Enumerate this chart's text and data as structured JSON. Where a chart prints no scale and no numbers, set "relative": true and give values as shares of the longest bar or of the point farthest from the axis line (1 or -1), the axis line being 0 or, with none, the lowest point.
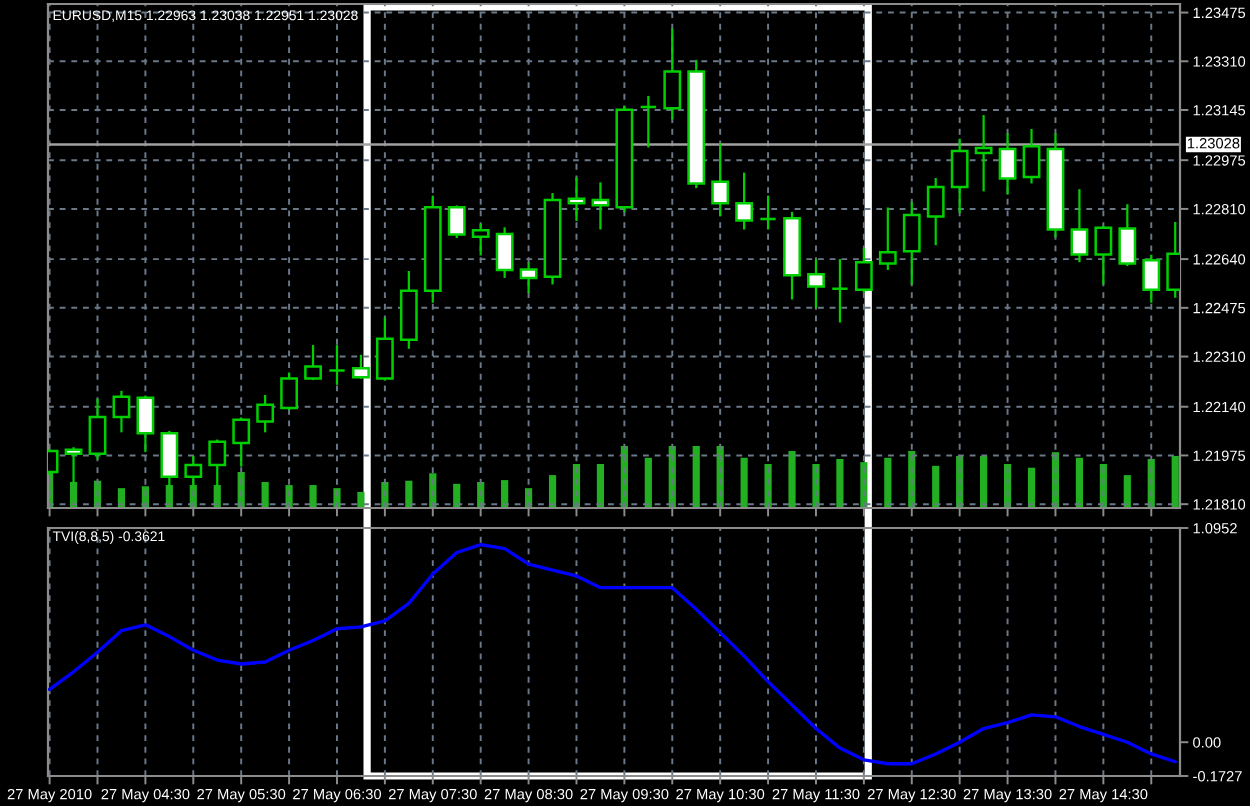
{
  "chart_data": [
    {
      "type": "candlestick",
      "title": "EURUSD,M15 1.22963 1.23038 1.22951 1.23028",
      "x": [
        "2010-05-27T03:30",
        "2010-05-27T03:45",
        "2010-05-27T04:00",
        "2010-05-27T04:15",
        "2010-05-27T04:30",
        "2010-05-27T04:45",
        "2010-05-27T05:00",
        "2010-05-27T05:15",
        "2010-05-27T05:30",
        "2010-05-27T05:45",
        "2010-05-27T06:00",
        "2010-05-27T06:15",
        "2010-05-27T06:30",
        "2010-05-27T06:45",
        "2010-05-27T07:00",
        "2010-05-27T07:15",
        "2010-05-27T07:30",
        "2010-05-27T07:45",
        "2010-05-27T08:00",
        "2010-05-27T08:15",
        "2010-05-27T08:30",
        "2010-05-27T08:45",
        "2010-05-27T09:00",
        "2010-05-27T09:15",
        "2010-05-27T09:30",
        "2010-05-27T09:45",
        "2010-05-27T10:00",
        "2010-05-27T10:15",
        "2010-05-27T10:30",
        "2010-05-27T10:45",
        "2010-05-27T11:00",
        "2010-05-27T11:15",
        "2010-05-27T11:30",
        "2010-05-27T11:45",
        "2010-05-27T12:00",
        "2010-05-27T12:15",
        "2010-05-27T12:30",
        "2010-05-27T12:45",
        "2010-05-27T13:00",
        "2010-05-27T13:15",
        "2010-05-27T13:30",
        "2010-05-27T13:45",
        "2010-05-27T14:00",
        "2010-05-27T14:15",
        "2010-05-27T14:30",
        "2010-05-27T14:45",
        "2010-05-27T15:00",
        "2010-05-27T15:15"
      ],
      "ohlc": [
        [
          1.21919,
          1.21992,
          1.21912,
          1.2199
        ],
        [
          1.21994,
          1.21999,
          1.21885,
          1.21981
        ],
        [
          1.21981,
          1.22163,
          1.21965,
          1.22105
        ],
        [
          1.22105,
          1.2219,
          1.22057,
          1.22174
        ],
        [
          1.2217,
          1.22174,
          1.2199,
          1.2205
        ],
        [
          1.2205,
          1.22054,
          1.21874,
          1.21903
        ],
        [
          1.21903,
          1.2197,
          1.21872,
          1.21943
        ],
        [
          1.21943,
          1.22025,
          1.21874,
          1.22021
        ],
        [
          1.22017,
          1.221,
          1.21941,
          1.22096
        ],
        [
          1.2209,
          1.22176,
          1.22057,
          1.22147
        ],
        [
          1.22136,
          1.22252,
          1.22132,
          1.22236
        ],
        [
          1.22236,
          1.22345,
          1.22234,
          1.22276
        ],
        [
          1.22263,
          1.22345,
          1.22218,
          1.22263
        ],
        [
          1.2227,
          1.22312,
          1.22238,
          1.2224
        ],
        [
          1.22236,
          1.22438,
          1.22232,
          1.2237
        ],
        [
          1.22367,
          1.22596,
          1.2234,
          1.22533
        ],
        [
          1.22533,
          1.22851,
          1.22496,
          1.22816
        ],
        [
          1.22816,
          1.22818,
          1.22715,
          1.22723
        ],
        [
          1.22716,
          1.22756,
          1.22656,
          1.22738
        ],
        [
          1.22725,
          1.22744,
          1.2258,
          1.22603
        ],
        [
          1.22605,
          1.22625,
          1.22529,
          1.22576
        ],
        [
          1.2258,
          1.2286,
          1.22558,
          1.2284
        ],
        [
          1.22844,
          1.22913,
          1.22773,
          1.22829
        ],
        [
          1.2284,
          1.22896,
          1.22744,
          1.22822
        ],
        [
          1.22816,
          1.23155,
          1.22802,
          1.23146
        ],
        [
          1.23155,
          1.23189,
          1.23022,
          1.23155
        ],
        [
          1.23151,
          1.23417,
          1.23117,
          1.23275
        ],
        [
          1.23275,
          1.23311,
          1.22884,
          1.22896
        ],
        [
          1.22902,
          1.23029,
          1.22789,
          1.22829
        ],
        [
          1.22829,
          1.22929,
          1.22744,
          1.22771
        ],
        [
          1.22776,
          1.22851,
          1.22744,
          1.22776
        ],
        [
          1.22778,
          1.22796,
          1.22507,
          1.22585
        ],
        [
          1.22589,
          1.22636,
          1.22478,
          1.22547
        ],
        [
          1.2254,
          1.22636,
          1.22429,
          1.2254
        ],
        [
          1.22536,
          1.22673,
          1.22531,
          1.22629
        ],
        [
          1.22625,
          1.22811,
          1.22607,
          1.22663
        ],
        [
          1.22667,
          1.22829,
          1.22558,
          1.22789
        ],
        [
          1.22784,
          1.22911,
          1.22691,
          1.22884
        ],
        [
          1.22884,
          1.23044,
          1.228,
          1.23006
        ],
        [
          1.22999,
          1.23124,
          1.22873,
          1.23016
        ],
        [
          1.23013,
          1.23062,
          1.22862,
          1.22913
        ],
        [
          1.22918,
          1.23077,
          1.229,
          1.23022
        ],
        [
          1.23013,
          1.23062,
          1.22718,
          1.2274
        ],
        [
          1.2274,
          1.22873,
          1.22633,
          1.22656
        ],
        [
          1.22656,
          1.22749,
          1.22558,
          1.22746
        ],
        [
          1.22744,
          1.22822,
          1.2262,
          1.22625
        ],
        [
          1.22636,
          1.22651,
          1.22496,
          1.22536
        ],
        [
          1.22536,
          1.22762,
          1.22513,
          1.22658
        ]
      ],
      "color": "#00d000",
      "colors": [
        "#000000",
        "#ffffff",
        "#000000",
        "#000000",
        "#ffffff",
        "#ffffff",
        "#000000",
        "#000000",
        "#000000",
        "#000000",
        "#000000",
        "#000000",
        "#00d000",
        "#ffffff",
        "#000000",
        "#000000",
        "#000000",
        "#ffffff",
        "#000000",
        "#ffffff",
        "#ffffff",
        "#000000",
        "#ffffff",
        "#ffffff",
        "#000000",
        "#00d000",
        "#000000",
        "#ffffff",
        "#ffffff",
        "#ffffff",
        "#00d000",
        "#ffffff",
        "#ffffff",
        "#00d000",
        "#000000",
        "#000000",
        "#000000",
        "#000000",
        "#000000",
        "#000000",
        "#ffffff",
        "#000000",
        "#ffffff",
        "#ffffff",
        "#000000",
        "#ffffff",
        "#ffffff",
        "#000000"
      ],
      "xlim": [
        "2010-05-27T03:29",
        "2010-05-27T15:18"
      ],
      "xticks": [
        {
          "value": "2010-05-27T03:30",
          "label": null
        },
        {
          "value": "2010-05-27T04:00",
          "label": null
        },
        {
          "value": "2010-05-27T04:30",
          "label": null
        },
        {
          "value": "2010-05-27T05:00",
          "label": null
        },
        {
          "value": "2010-05-27T05:30",
          "label": null
        },
        {
          "value": "2010-05-27T06:00",
          "label": null
        },
        {
          "value": "2010-05-27T06:30",
          "label": null
        },
        {
          "value": "2010-05-27T07:00",
          "label": null
        },
        {
          "value": "2010-05-27T07:30",
          "label": null
        },
        {
          "value": "2010-05-27T08:00",
          "label": null
        },
        {
          "value": "2010-05-27T08:30",
          "label": null
        },
        {
          "value": "2010-05-27T09:00",
          "label": null
        },
        {
          "value": "2010-05-27T09:30",
          "label": null
        },
        {
          "value": "2010-05-27T10:00",
          "label": null
        },
        {
          "value": "2010-05-27T10:30",
          "label": null
        },
        {
          "value": "2010-05-27T11:00",
          "label": null
        },
        {
          "value": "2010-05-27T11:30",
          "label": null
        },
        {
          "value": "2010-05-27T12:00",
          "label": null
        },
        {
          "value": "2010-05-27T12:30",
          "label": null
        },
        {
          "value": "2010-05-27T13:00",
          "label": null
        },
        {
          "value": "2010-05-27T13:30",
          "label": null
        },
        {
          "value": "2010-05-27T14:00",
          "label": null
        },
        {
          "value": "2010-05-27T14:30",
          "label": null
        },
        {
          "value": "2010-05-27T15:00",
          "label": null
        }
      ],
      "ylim": [
        1.21797,
        1.23504
      ],
      "yticks": [
        1.23475,
        {
          "value": 1.2331,
          "label": "1.23310"
        },
        1.23145,
        1.22975,
        {
          "value": 1.2281,
          "label": "1.22810"
        },
        {
          "value": 1.2264,
          "label": "1.22640"
        },
        1.22475,
        {
          "value": 1.2231,
          "label": "1.22310"
        },
        {
          "value": 1.2214,
          "label": "1.22140"
        },
        1.21975,
        {
          "value": 1.2181,
          "label": "1.21810"
        }
      ],
      "grid": true,
      "tick_labels": "y",
      "ref_lines": [
        {
          "axis": "y",
          "value": 1.23028,
          "label": "1.23028",
          "color": "#a0a0a0"
        }
      ]
    },
    {
      "type": "bar",
      "relative": true,
      "color": "#22b022",
      "tick_labels": false,
      "x": [
        "2010-05-27T03:30",
        "2010-05-27T03:45",
        "2010-05-27T04:00",
        "2010-05-27T04:15",
        "2010-05-27T04:30",
        "2010-05-27T04:45",
        "2010-05-27T05:00",
        "2010-05-27T05:15",
        "2010-05-27T05:30",
        "2010-05-27T05:45",
        "2010-05-27T06:00",
        "2010-05-27T06:15",
        "2010-05-27T06:30",
        "2010-05-27T06:45",
        "2010-05-27T07:00",
        "2010-05-27T07:15",
        "2010-05-27T07:30",
        "2010-05-27T07:45",
        "2010-05-27T08:00",
        "2010-05-27T08:15",
        "2010-05-27T08:30",
        "2010-05-27T08:45",
        "2010-05-27T09:00",
        "2010-05-27T09:15",
        "2010-05-27T09:30",
        "2010-05-27T09:45",
        "2010-05-27T10:00",
        "2010-05-27T10:15",
        "2010-05-27T10:30",
        "2010-05-27T10:45",
        "2010-05-27T11:00",
        "2010-05-27T11:15",
        "2010-05-27T11:30",
        "2010-05-27T11:45",
        "2010-05-27T12:00",
        "2010-05-27T12:15",
        "2010-05-27T12:30",
        "2010-05-27T12:45",
        "2010-05-27T13:00",
        "2010-05-27T13:15",
        "2010-05-27T13:30",
        "2010-05-27T13:45",
        "2010-05-27T14:00",
        "2010-05-27T14:15",
        "2010-05-27T14:30",
        "2010-05-27T14:45",
        "2010-05-27T15:00",
        "2010-05-27T15:15"
      ],
      "values": [
        0.58,
        0.42,
        0.44,
        0.32,
        0.35,
        0.37,
        0.37,
        0.37,
        0.58,
        0.42,
        0.37,
        0.37,
        0.32,
        0.26,
        0.42,
        0.44,
        0.56,
        0.39,
        0.42,
        0.45,
        0.32,
        0.53,
        0.71,
        0.71,
        1,
        0.81,
        1,
        1,
        1,
        0.81,
        0.71,
        0.92,
        0.71,
        0.79,
        0.74,
        0.81,
        0.92,
        0.68,
        0.84,
        0.84,
        0.71,
        0.65,
        0.9,
        0.81,
        0.71,
        0.53,
        0.79,
        0.84
      ],
      "xlim": [
        "2010-05-27T03:29",
        "2010-05-27T15:18"
      ]
    },
    {
      "type": "line",
      "title": "TVI(8,8,5) -0.3621",
      "x": [
        "2010-05-27T03:30",
        "2010-05-27T03:45",
        "2010-05-27T04:00",
        "2010-05-27T04:15",
        "2010-05-27T04:30",
        "2010-05-27T04:45",
        "2010-05-27T05:00",
        "2010-05-27T05:15",
        "2010-05-27T05:30",
        "2010-05-27T05:45",
        "2010-05-27T06:00",
        "2010-05-27T06:15",
        "2010-05-27T06:30",
        "2010-05-27T06:45",
        "2010-05-27T07:00",
        "2010-05-27T07:15",
        "2010-05-27T07:30",
        "2010-05-27T07:45",
        "2010-05-27T08:00",
        "2010-05-27T08:15",
        "2010-05-27T08:30",
        "2010-05-27T08:45",
        "2010-05-27T09:00",
        "2010-05-27T09:15",
        "2010-05-27T09:30",
        "2010-05-27T09:45",
        "2010-05-27T10:00",
        "2010-05-27T10:15",
        "2010-05-27T10:30",
        "2010-05-27T10:45",
        "2010-05-27T11:00",
        "2010-05-27T11:15",
        "2010-05-27T11:30",
        "2010-05-27T11:45",
        "2010-05-27T12:00",
        "2010-05-27T12:15",
        "2010-05-27T12:30",
        "2010-05-27T12:45",
        "2010-05-27T13:00",
        "2010-05-27T13:15",
        "2010-05-27T13:30",
        "2010-05-27T13:45",
        "2010-05-27T14:00",
        "2010-05-27T14:15",
        "2010-05-27T14:30",
        "2010-05-27T14:45",
        "2010-05-27T15:00",
        "2010-05-27T15:15"
      ],
      "series": [
        {
          "color": "#0000ff",
          "values": [
            0.27,
            0.36,
            0.46,
            0.57,
            0.6,
            0.54,
            0.47,
            0.42,
            0.4,
            0.41,
            0.47,
            0.52,
            0.58,
            0.59,
            0.62,
            0.71,
            0.86,
            0.97,
            1.01,
            0.99,
            0.91,
            0.88,
            0.85,
            0.79,
            0.79,
            0.79,
            0.79,
            0.68,
            0.56,
            0.44,
            0.31,
            0.19,
            0.07,
            -0.03,
            -0.09,
            -0.11,
            -0.11,
            -0.06,
            0.0,
            0.07,
            0.1,
            0.14,
            0.13,
            0.08,
            0.04,
            0.0,
            -0.06,
            -0.1
          ]
        }
      ],
      "xlim": [
        "2010-05-27T03:29",
        "2010-05-27T15:18"
      ],
      "xticks": [
        {
          "value": "2010-05-27T03:30",
          "label": "27 May 2010"
        },
        {
          "value": "2010-05-27T04:00",
          "label": null
        },
        {
          "value": "2010-05-27T04:30",
          "label": "27 May 04:30"
        },
        {
          "value": "2010-05-27T05:00",
          "label": null
        },
        {
          "value": "2010-05-27T05:30",
          "label": "27 May 05:30"
        },
        {
          "value": "2010-05-27T06:00",
          "label": null
        },
        {
          "value": "2010-05-27T06:30",
          "label": "27 May 06:30"
        },
        {
          "value": "2010-05-27T07:00",
          "label": null
        },
        {
          "value": "2010-05-27T07:30",
          "label": "27 May 07:30"
        },
        {
          "value": "2010-05-27T08:00",
          "label": null
        },
        {
          "value": "2010-05-27T08:30",
          "label": "27 May 08:30"
        },
        {
          "value": "2010-05-27T09:00",
          "label": null
        },
        {
          "value": "2010-05-27T09:30",
          "label": "27 May 09:30"
        },
        {
          "value": "2010-05-27T10:00",
          "label": null
        },
        {
          "value": "2010-05-27T10:30",
          "label": "27 May 10:30"
        },
        {
          "value": "2010-05-27T11:00",
          "label": null
        },
        {
          "value": "2010-05-27T11:30",
          "label": "27 May 11:30"
        },
        {
          "value": "2010-05-27T12:00",
          "label": null
        },
        {
          "value": "2010-05-27T12:30",
          "label": "27 May 12:30"
        },
        {
          "value": "2010-05-27T13:00",
          "label": null
        },
        {
          "value": "2010-05-27T13:30",
          "label": "27 May 13:30"
        },
        {
          "value": "2010-05-27T14:00",
          "label": null
        },
        {
          "value": "2010-05-27T14:30",
          "label": "27 May 14:30"
        },
        {
          "value": "2010-05-27T15:00",
          "label": null
        }
      ],
      "ylim": [
        -0.1727,
        1.0952
      ],
      "yticks": [
        -0.1727,
        {
          "value": 0,
          "label": "0.00"
        },
        1.0952
      ],
      "grid": "x"
    }
  ]
}
